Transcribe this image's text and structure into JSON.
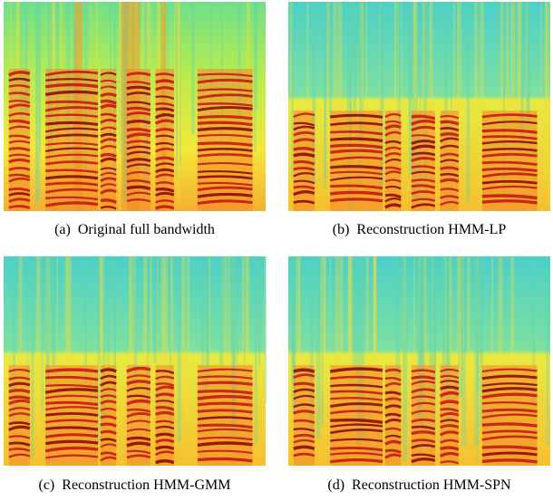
{
  "figure": {
    "panels": [
      {
        "label": "(a)",
        "caption": "Original full bandwidth"
      },
      {
        "label": "(b)",
        "caption": "Reconstruction HMM-LP"
      },
      {
        "label": "(c)",
        "caption": "Reconstruction HMM-GMM"
      },
      {
        "label": "(d)",
        "caption": "Reconstruction HMM-SPN"
      }
    ]
  }
}
